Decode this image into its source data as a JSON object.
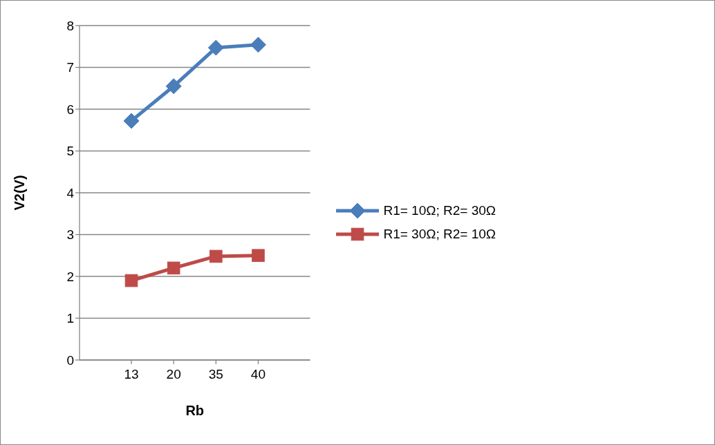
{
  "chart_data": {
    "type": "line",
    "xlabel": "Rb",
    "ylabel": "V2(V)",
    "categories": [
      "13",
      "20",
      "35",
      "40"
    ],
    "series": [
      {
        "name": "R1= 10Ω; R2= 30Ω",
        "color": "#4a7ebb",
        "marker": "diamond",
        "values": [
          5.72,
          6.55,
          7.47,
          7.54
        ]
      },
      {
        "name": "R1= 30Ω; R2= 10Ω",
        "color": "#be4b48",
        "marker": "square",
        "values": [
          1.9,
          2.2,
          2.48,
          2.5
        ]
      }
    ],
    "ylim": [
      0,
      8
    ],
    "yticks": [
      0,
      1,
      2,
      3,
      4,
      5,
      6,
      7,
      8
    ],
    "grid": "y",
    "legend": "right"
  }
}
